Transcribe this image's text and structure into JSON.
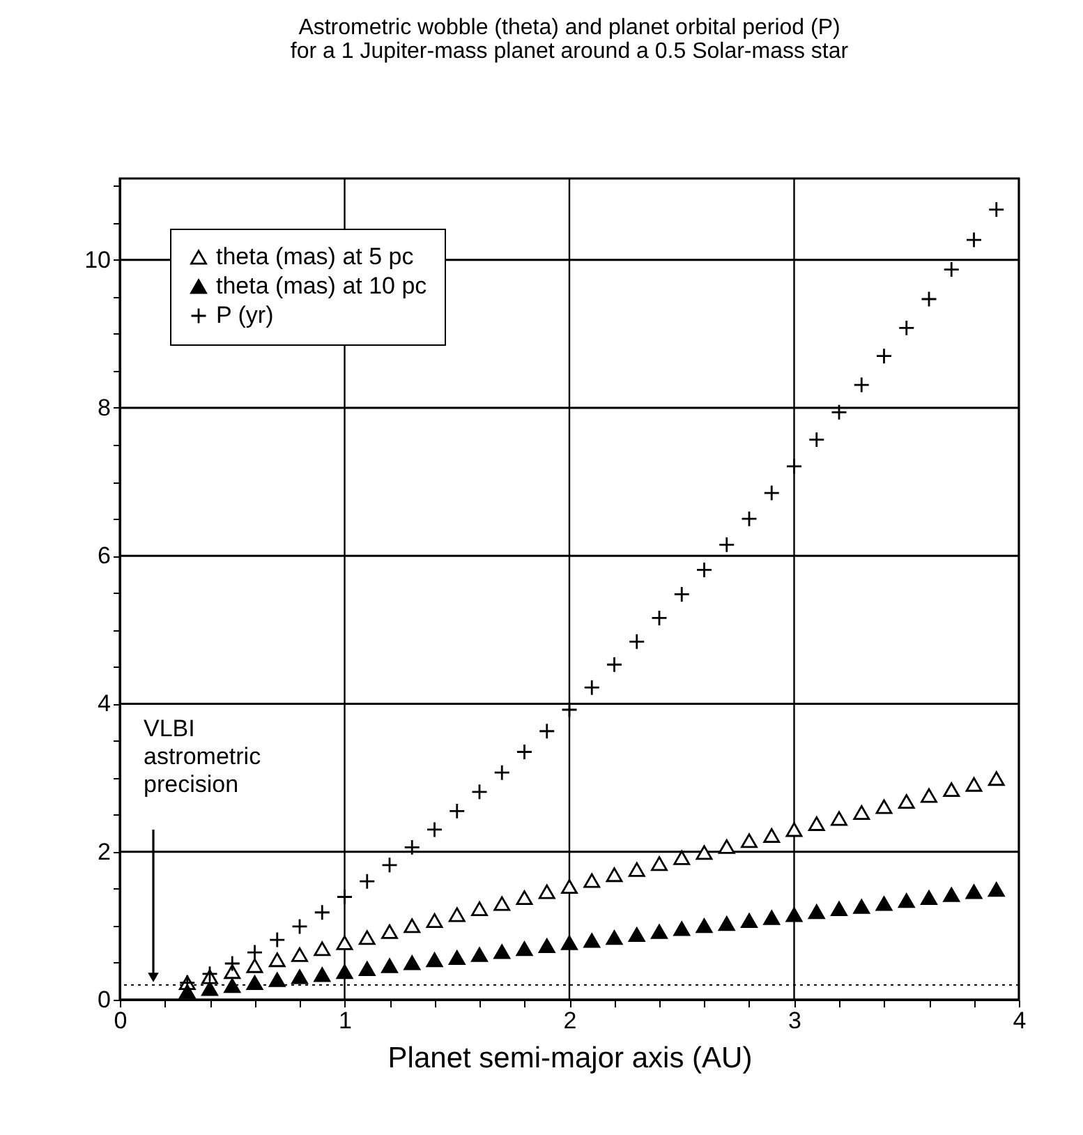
{
  "chart_data": {
    "type": "scatter",
    "title": "Astrometric wobble (theta) and planet orbital period (P)",
    "subtitle": "for a 1 Jupiter-mass planet around a 0.5 Solar-mass star",
    "xlabel": "Planet semi-major axis (AU)",
    "x": [
      0.3,
      0.4,
      0.5,
      0.6,
      0.7,
      0.8,
      0.9,
      1.0,
      1.1,
      1.2,
      1.3,
      1.4,
      1.5,
      1.6,
      1.7,
      1.8,
      1.9,
      2.0,
      2.1,
      2.2,
      2.3,
      2.4,
      2.5,
      2.6,
      2.7,
      2.8,
      2.9,
      3.0,
      3.1,
      3.2,
      3.3,
      3.4,
      3.5,
      3.6,
      3.7,
      3.8,
      3.9
    ],
    "series": [
      {
        "name": "theta (mas) at 5 pc",
        "color": "#000000",
        "marker": "triangle",
        "values": [
          0.23,
          0.31,
          0.38,
          0.46,
          0.54,
          0.61,
          0.69,
          0.77,
          0.84,
          0.92,
          1.0,
          1.07,
          1.15,
          1.23,
          1.3,
          1.38,
          1.46,
          1.53,
          1.61,
          1.69,
          1.76,
          1.84,
          1.92,
          1.99,
          2.07,
          2.15,
          2.22,
          2.3,
          2.38,
          2.45,
          2.53,
          2.61,
          2.68,
          2.76,
          2.84,
          2.91,
          2.99
        ]
      },
      {
        "name": "theta (mas) at 10 pc",
        "color": "#000000",
        "marker": "triangle",
        "values": [
          0.11,
          0.15,
          0.19,
          0.23,
          0.27,
          0.31,
          0.34,
          0.38,
          0.42,
          0.46,
          0.5,
          0.54,
          0.57,
          0.61,
          0.65,
          0.69,
          0.73,
          0.77,
          0.8,
          0.84,
          0.88,
          0.92,
          0.96,
          1.0,
          1.03,
          1.07,
          1.11,
          1.15,
          1.19,
          1.23,
          1.26,
          1.3,
          1.34,
          1.38,
          1.42,
          1.46,
          1.49
        ]
      },
      {
        "name": "P (yr)",
        "color": "#000000",
        "marker": "cross",
        "values": [
          0.23,
          0.35,
          0.49,
          0.64,
          0.81,
          0.99,
          1.18,
          1.39,
          1.6,
          1.82,
          2.06,
          2.3,
          2.55,
          2.81,
          3.07,
          3.35,
          3.63,
          3.92,
          4.22,
          4.53,
          4.84,
          5.16,
          5.48,
          5.81,
          6.15,
          6.5,
          6.85,
          7.21,
          7.57,
          7.94,
          8.31,
          8.7,
          9.08,
          9.47,
          9.87,
          10.27,
          10.68
        ]
      }
    ],
    "xlim": [
      0,
      4
    ],
    "ylim": [
      0,
      11.1
    ],
    "xticks": [
      0,
      {
        "value": 0.2,
        "label": null
      },
      {
        "value": 0.4,
        "label": null
      },
      {
        "value": 0.6,
        "label": null
      },
      {
        "value": 0.8,
        "label": null
      },
      1,
      {
        "value": 1.2,
        "label": null
      },
      {
        "value": 1.4,
        "label": null
      },
      {
        "value": 1.6,
        "label": null
      },
      {
        "value": 1.8,
        "label": null
      },
      2,
      {
        "value": 2.2,
        "label": null
      },
      {
        "value": 2.4,
        "label": null
      },
      {
        "value": 2.6,
        "label": null
      },
      {
        "value": 2.8,
        "label": null
      },
      3,
      {
        "value": 3.2,
        "label": null
      },
      {
        "value": 3.4,
        "label": null
      },
      {
        "value": 3.6,
        "label": null
      },
      {
        "value": 3.8,
        "label": null
      },
      4
    ],
    "yticks": [
      0,
      {
        "value": 0.5,
        "label": null
      },
      {
        "value": 1,
        "label": null
      },
      {
        "value": 1.5,
        "label": null
      },
      2,
      {
        "value": 2.5,
        "label": null
      },
      {
        "value": 3,
        "label": null
      },
      {
        "value": 3.5,
        "label": null
      },
      4,
      {
        "value": 4.5,
        "label": null
      },
      {
        "value": 5,
        "label": null
      },
      {
        "value": 5.5,
        "label": null
      },
      6,
      {
        "value": 6.5,
        "label": null
      },
      {
        "value": 7,
        "label": null
      },
      {
        "value": 7.5,
        "label": null
      },
      8,
      {
        "value": 8.5,
        "label": null
      },
      {
        "value": 9,
        "label": null
      },
      {
        "value": 9.5,
        "label": null
      },
      10,
      {
        "value": 10.5,
        "label": null
      },
      {
        "value": 11,
        "label": null
      }
    ],
    "grid": true,
    "legend": "top left",
    "ref_lines": [
      {
        "axis": "y",
        "value": 0.2,
        "line_style": "dotted"
      }
    ],
    "annotations": [
      "VLBI\nastrometric\nprecision"
    ]
  }
}
